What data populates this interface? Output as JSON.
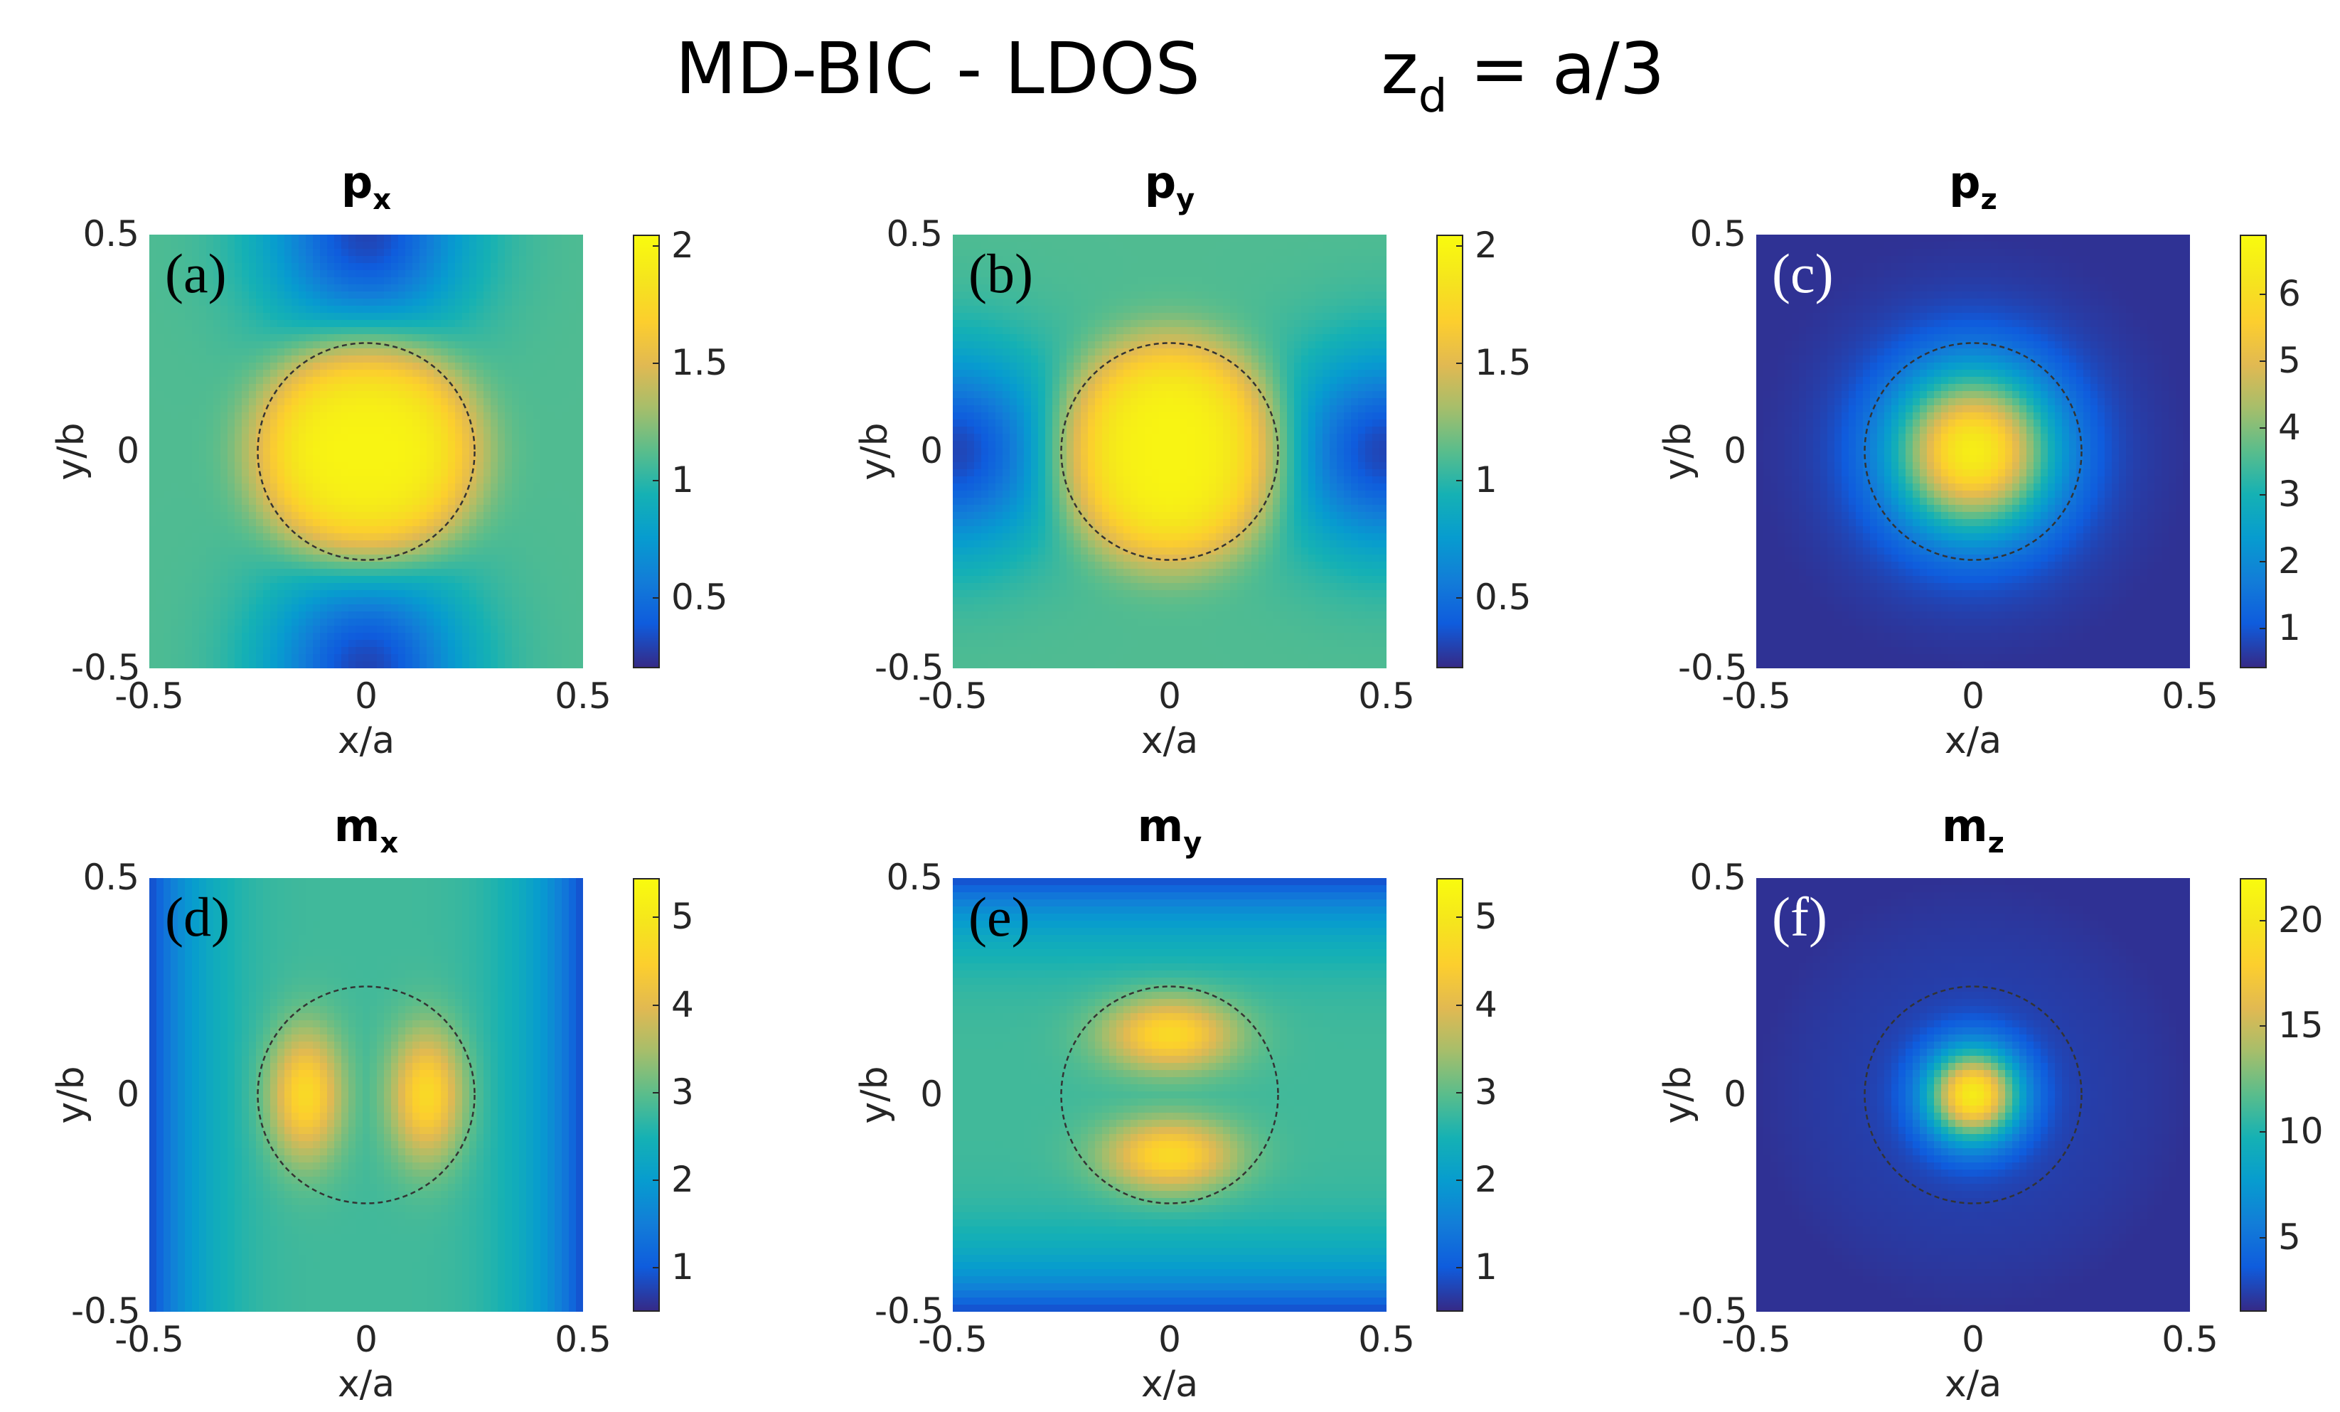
{
  "figure": {
    "title_main": "MD-BIC - LDOS",
    "title_z": "z",
    "title_z_sub": "d",
    "title_z_eq": " = a/3"
  },
  "chart_data": [
    {
      "type": "heatmap",
      "id": "a",
      "panel_label": "(a)",
      "label_color": "#000000",
      "title_base": "p",
      "title_sub": "x",
      "xlabel": "x/a",
      "ylabel": "y/b",
      "xlim": [
        -0.5,
        0.5
      ],
      "ylim": [
        -0.5,
        0.5
      ],
      "xticks": [
        "-0.5",
        "0",
        "0.5"
      ],
      "yticks": [
        "0.5",
        "0",
        "-0.5"
      ],
      "colorbar": {
        "min": 0.2,
        "max": 2.05,
        "ticks": [
          0.5,
          1,
          1.5,
          2
        ],
        "tick_labels": [
          "0.5",
          "1",
          "1.5",
          "2"
        ]
      },
      "circle_radius": 0.25,
      "field": {
        "pattern": "px",
        "center": 2.0,
        "background": 1.1,
        "minimum": 0.3,
        "min_location": "top and bottom edge centres"
      }
    },
    {
      "type": "heatmap",
      "id": "b",
      "panel_label": "(b)",
      "label_color": "#000000",
      "title_base": "p",
      "title_sub": "y",
      "xlabel": "x/a",
      "ylabel": "y/b",
      "xlim": [
        -0.5,
        0.5
      ],
      "ylim": [
        -0.5,
        0.5
      ],
      "xticks": [
        "-0.5",
        "0",
        "0.5"
      ],
      "yticks": [
        "0.5",
        "0",
        "-0.5"
      ],
      "colorbar": {
        "min": 0.2,
        "max": 2.05,
        "ticks": [
          0.5,
          1,
          1.5,
          2
        ],
        "tick_labels": [
          "0.5",
          "1",
          "1.5",
          "2"
        ]
      },
      "circle_radius": 0.25,
      "field": {
        "pattern": "py",
        "center": 2.0,
        "background": 1.1,
        "minimum": 0.3,
        "min_location": "left and right edge centres"
      }
    },
    {
      "type": "heatmap",
      "id": "c",
      "panel_label": "(c)",
      "label_color": "#ffffff",
      "title_base": "p",
      "title_sub": "z",
      "xlabel": "x/a",
      "ylabel": "y/b",
      "xlim": [
        -0.5,
        0.5
      ],
      "ylim": [
        -0.5,
        0.5
      ],
      "xticks": [
        "-0.5",
        "0",
        "0.5"
      ],
      "yticks": [
        "0.5",
        "0",
        "-0.5"
      ],
      "colorbar": {
        "min": 0.4,
        "max": 6.9,
        "ticks": [
          1,
          2,
          3,
          4,
          5,
          6
        ],
        "tick_labels": [
          "1",
          "2",
          "3",
          "4",
          "5",
          "6"
        ]
      },
      "circle_radius": 0.25,
      "field": {
        "pattern": "pz",
        "center": 6.5,
        "background": 0.7,
        "minimum": 0.5,
        "min_location": "edges"
      }
    },
    {
      "type": "heatmap",
      "id": "d",
      "panel_label": "(d)",
      "label_color": "#000000",
      "title_base": "m",
      "title_sub": "x",
      "xlabel": "x/a",
      "ylabel": "y/b",
      "xlim": [
        -0.5,
        0.5
      ],
      "ylim": [
        -0.5,
        0.5
      ],
      "xticks": [
        "-0.5",
        "0",
        "0.5"
      ],
      "yticks": [
        "0.5",
        "0",
        "-0.5"
      ],
      "colorbar": {
        "min": 0.5,
        "max": 5.45,
        "ticks": [
          1,
          2,
          3,
          4,
          5
        ],
        "tick_labels": [
          "1",
          "2",
          "3",
          "4",
          "5"
        ]
      },
      "circle_radius": 0.25,
      "field": {
        "pattern": "mx",
        "lobe_centers": [
          [
            -0.14,
            0
          ],
          [
            0.14,
            0
          ]
        ],
        "center": 4.7,
        "background": 2.8,
        "minimum": 0.8,
        "min_location": "left and right edges"
      }
    },
    {
      "type": "heatmap",
      "id": "e",
      "panel_label": "(e)",
      "label_color": "#000000",
      "title_base": "m",
      "title_sub": "y",
      "xlabel": "x/a",
      "ylabel": "y/b",
      "xlim": [
        -0.5,
        0.5
      ],
      "ylim": [
        -0.5,
        0.5
      ],
      "xticks": [
        "-0.5",
        "0",
        "0.5"
      ],
      "yticks": [
        "0.5",
        "0",
        "-0.5"
      ],
      "colorbar": {
        "min": 0.5,
        "max": 5.45,
        "ticks": [
          1,
          2,
          3,
          4,
          5
        ],
        "tick_labels": [
          "1",
          "2",
          "3",
          "4",
          "5"
        ]
      },
      "circle_radius": 0.25,
      "field": {
        "pattern": "my",
        "lobe_centers": [
          [
            0,
            0.14
          ],
          [
            0,
            -0.14
          ]
        ],
        "center": 4.7,
        "background": 2.8,
        "minimum": 0.8,
        "min_location": "top and bottom edges"
      }
    },
    {
      "type": "heatmap",
      "id": "f",
      "panel_label": "(f)",
      "label_color": "#ffffff",
      "title_base": "m",
      "title_sub": "z",
      "xlabel": "x/a",
      "ylabel": "y/b",
      "xlim": [
        -0.5,
        0.5
      ],
      "ylim": [
        -0.5,
        0.5
      ],
      "xticks": [
        "-0.5",
        "0",
        "0.5"
      ],
      "yticks": [
        "0.5",
        "0",
        "-0.5"
      ],
      "colorbar": {
        "min": 1.5,
        "max": 22.0,
        "ticks": [
          5,
          10,
          15,
          20
        ],
        "tick_labels": [
          "5",
          "10",
          "15",
          "20"
        ]
      },
      "circle_radius": 0.25,
      "field": {
        "pattern": "mz",
        "center": 20.5,
        "background": 2.5,
        "minimum": 1.8,
        "min_location": "edges"
      }
    }
  ]
}
